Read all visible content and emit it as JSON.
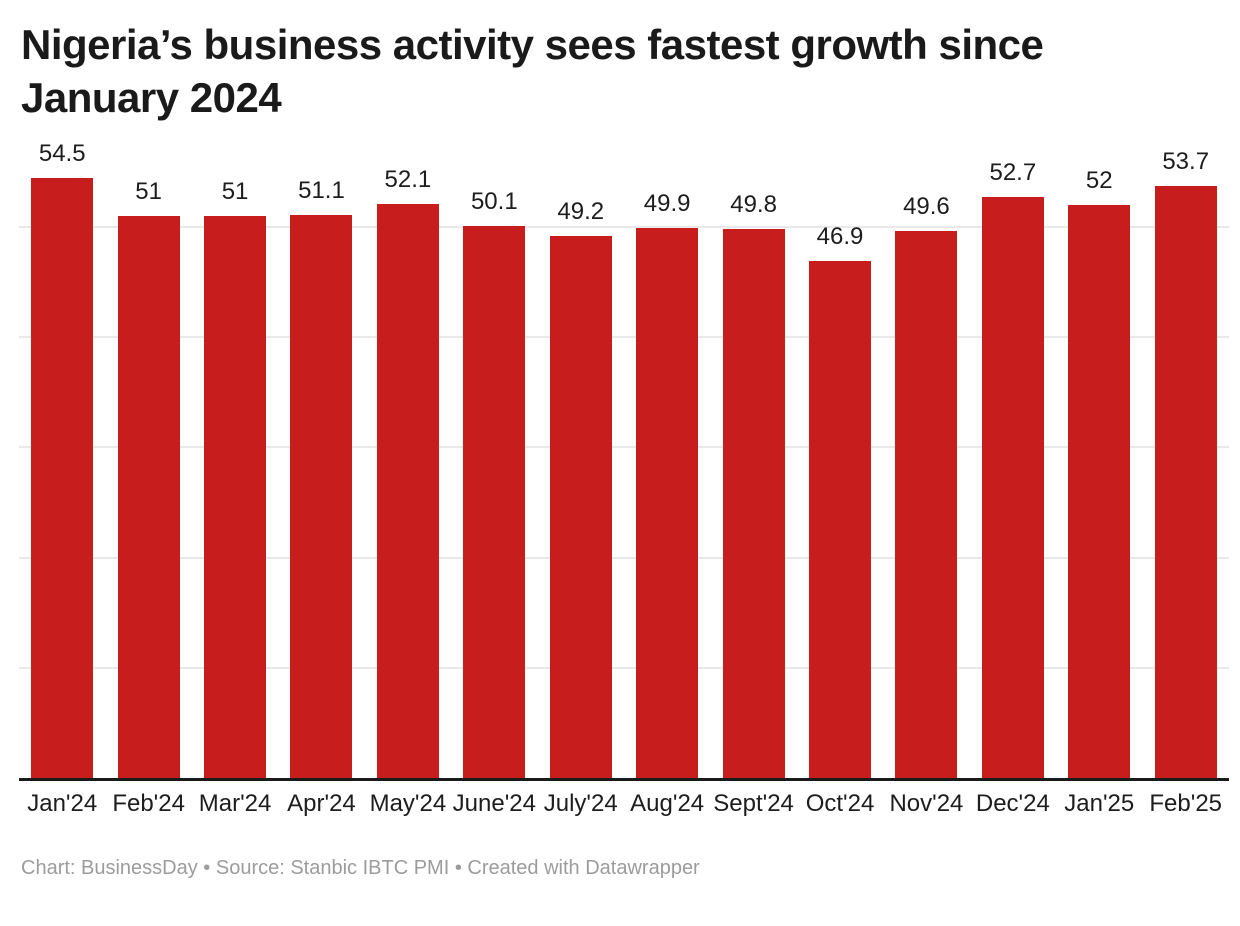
{
  "header": {
    "title": "Nigeria’s business activity sees fastest growth since January 2024"
  },
  "chart_data": {
    "type": "bar",
    "title": "Nigeria’s business activity sees fastest growth since January 2024",
    "categories": [
      "Jan'24",
      "Feb'24",
      "Mar'24",
      "Apr'24",
      "May'24",
      "June'24",
      "July'24",
      "Aug'24",
      "Sept'24",
      "Oct'24",
      "Nov'24",
      "Dec'24",
      "Jan'25",
      "Feb'25"
    ],
    "values": [
      54.5,
      51,
      51,
      51.1,
      52.1,
      50.1,
      49.2,
      49.9,
      49.8,
      46.9,
      49.6,
      52.7,
      52,
      53.7
    ],
    "value_labels": [
      "54.5",
      "51",
      "51",
      "51.1",
      "52.1",
      "50.1",
      "49.2",
      "49.9",
      "49.8",
      "46.9",
      "49.6",
      "52.7",
      "52",
      "53.7"
    ],
    "xlabel": "",
    "ylabel": "",
    "ylim": [
      0,
      57.9
    ],
    "gridlines": [
      10,
      20,
      30,
      40,
      50
    ],
    "grid": "horizontal, unlabeled",
    "legend": "none",
    "data_labels": "above bars"
  },
  "colors": {
    "bar": "#c71e1d",
    "title_text": "#1a1a1a",
    "label_text": "#1d1d1d",
    "gridline": "#e9e9e9",
    "axis_line": "#1a1a1a",
    "footer_text": "#9c9c9c",
    "background": "#ffffff"
  },
  "footer": {
    "text": "Chart: BusinessDay • Source: Stanbic IBTC PMI • Created with Datawrapper"
  }
}
